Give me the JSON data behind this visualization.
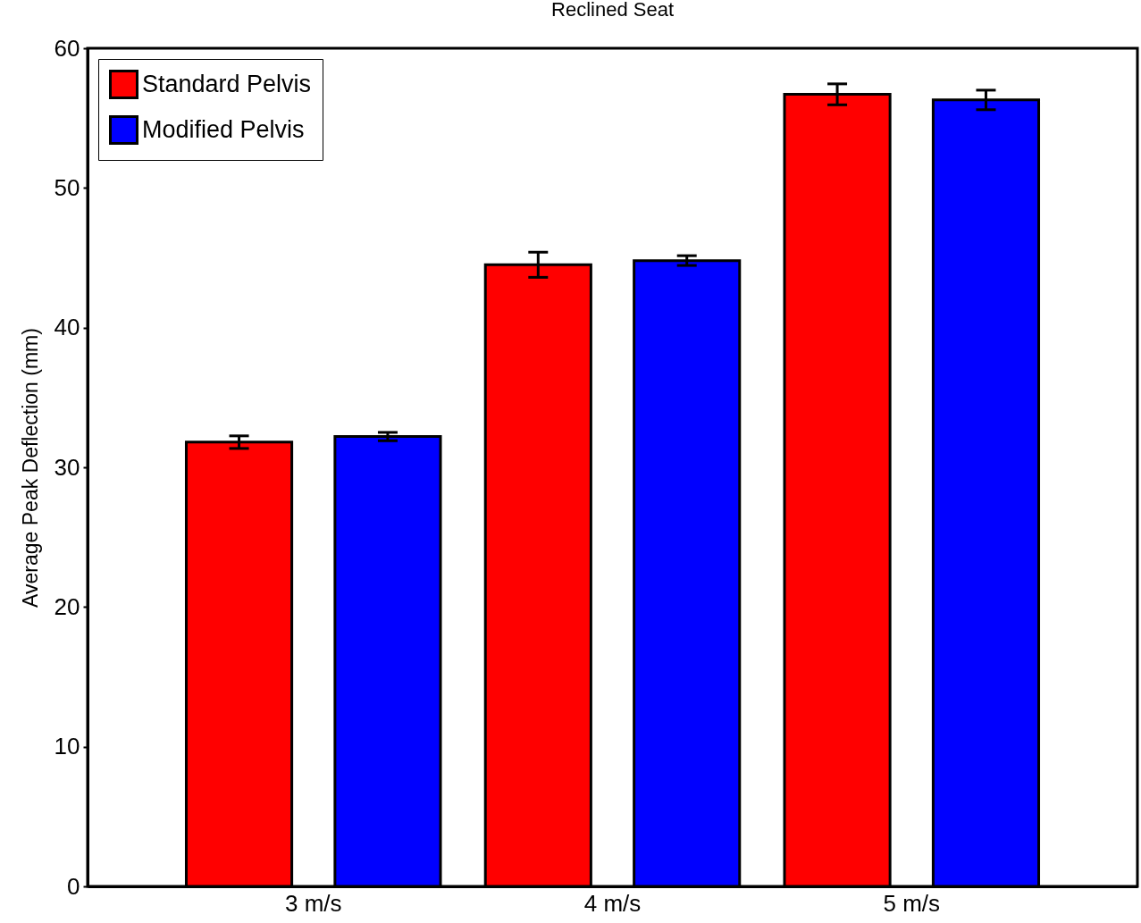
{
  "chart_data": {
    "type": "bar",
    "title": "Reclined Seat",
    "ylabel": "Average Peak Deflection (mm)",
    "categories": [
      "3 m/s",
      "4 m/s",
      "5 m/s"
    ],
    "series": [
      {
        "name": "Standard Pelvis",
        "color": "#ff0000",
        "values": [
          31.8,
          44.5,
          56.7
        ],
        "errors": [
          0.45,
          0.9,
          0.75
        ]
      },
      {
        "name": "Modified Pelvis",
        "color": "#0000ff",
        "values": [
          32.2,
          44.8,
          56.3
        ],
        "errors": [
          0.3,
          0.35,
          0.7
        ]
      }
    ],
    "ylim": [
      0,
      60
    ],
    "yticks": [
      0,
      10,
      20,
      30,
      40,
      50,
      60
    ],
    "grid": false,
    "legend": "top left"
  }
}
